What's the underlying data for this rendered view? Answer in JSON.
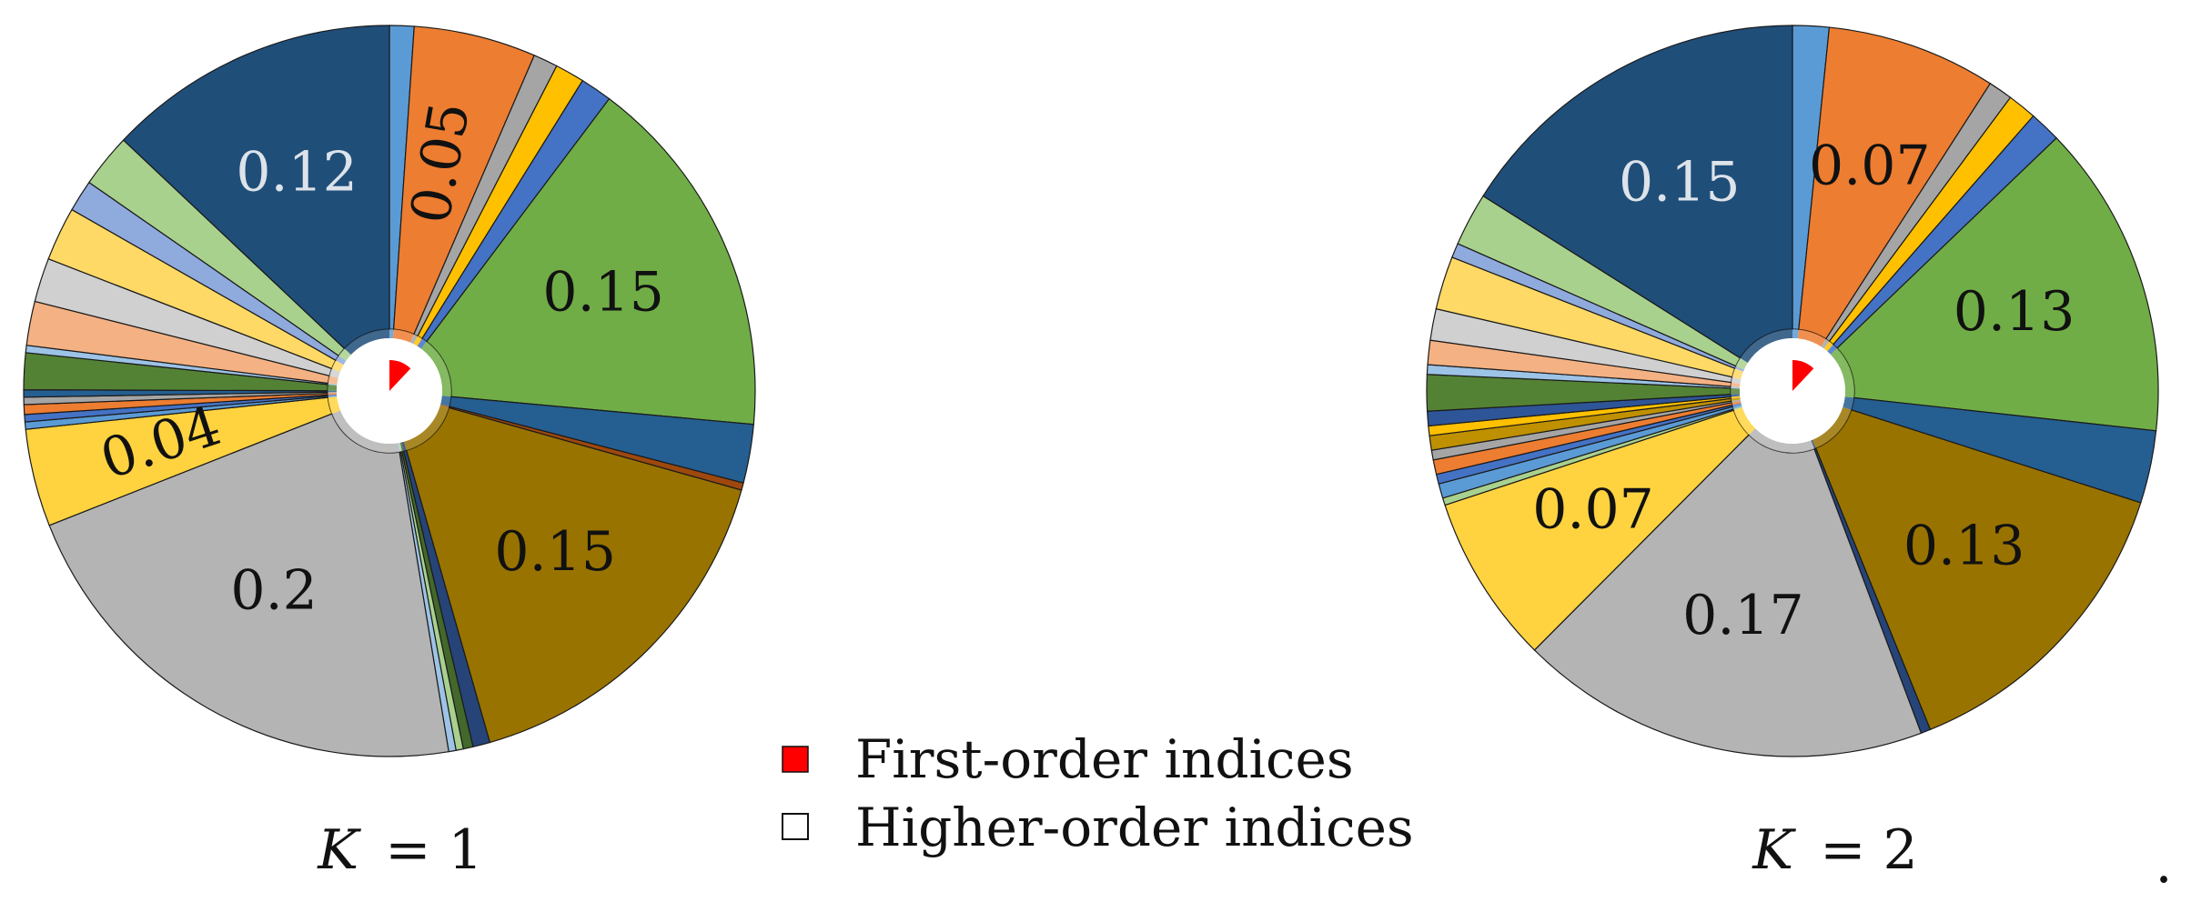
{
  "chart_data": [
    {
      "type": "pie",
      "caption_var": "K",
      "caption_value": "= 1",
      "first_order_share": 0.12,
      "slices": [
        {
          "value": 0.01,
          "color": "#5b9bd5"
        },
        {
          "value": 0.05,
          "color": "#ed7d31",
          "label": "0.05",
          "label_color": "#111111",
          "label_rotate": -80
        },
        {
          "value": 0.01,
          "color": "#a5a5a5"
        },
        {
          "value": 0.012,
          "color": "#ffc000"
        },
        {
          "value": 0.013,
          "color": "#4472c4"
        },
        {
          "value": 0.15,
          "color": "#70ad47",
          "label": "0.15",
          "label_color": "#111111"
        },
        {
          "value": 0.024,
          "color": "#255e91"
        },
        {
          "value": 0.003,
          "color": "#9e480e"
        },
        {
          "value": 0.15,
          "color": "#997300",
          "label": "0.15",
          "label_color": "#111111"
        },
        {
          "value": 0.007,
          "color": "#264478"
        },
        {
          "value": 0.004,
          "color": "#43682b"
        },
        {
          "value": 0.003,
          "color": "#a9d18e"
        },
        {
          "value": 0.003,
          "color": "#9dc3e6"
        },
        {
          "value": 0.2,
          "color": "#b4b4b4",
          "label": "0.2",
          "label_color": "#111111"
        },
        {
          "value": 0.04,
          "color": "#ffd33f",
          "label": "0.04",
          "label_color": "#111111",
          "label_rotate": -18
        },
        {
          "value": 0.003,
          "color": "#5b9bd5"
        },
        {
          "value": 0.003,
          "color": "#4472c4"
        },
        {
          "value": 0.004,
          "color": "#ed7d31"
        },
        {
          "value": 0.003,
          "color": "#a5a5a5"
        },
        {
          "value": 0.003,
          "color": "#255e91"
        },
        {
          "value": 0.015,
          "color": "#548235"
        },
        {
          "value": 0.003,
          "color": "#9dc3e6"
        },
        {
          "value": 0.018,
          "color": "#f4b183"
        },
        {
          "value": 0.018,
          "color": "#d0d0d0"
        },
        {
          "value": 0.022,
          "color": "#ffd966"
        },
        {
          "value": 0.013,
          "color": "#8faadc"
        },
        {
          "value": 0.022,
          "color": "#a9d18e"
        },
        {
          "value": 0.12,
          "color": "#1f4e79",
          "label": "0.12",
          "label_color": "#dde3ea"
        }
      ]
    },
    {
      "type": "pie",
      "caption_var": "K",
      "caption_value": "= 2",
      "first_order_share": 0.12,
      "slices": [
        {
          "value": 0.015,
          "color": "#5b9bd5"
        },
        {
          "value": 0.07,
          "color": "#ed7d31",
          "label": "0.07",
          "label_color": "#111111"
        },
        {
          "value": 0.01,
          "color": "#a5a5a5"
        },
        {
          "value": 0.012,
          "color": "#ffc000"
        },
        {
          "value": 0.013,
          "color": "#4472c4"
        },
        {
          "value": 0.13,
          "color": "#70ad47",
          "label": "0.13",
          "label_color": "#111111"
        },
        {
          "value": 0.03,
          "color": "#255e91"
        },
        {
          "value": 0.13,
          "color": "#997300",
          "label": "0.13",
          "label_color": "#111111"
        },
        {
          "value": 0.004,
          "color": "#264478"
        },
        {
          "value": 0.17,
          "color": "#b4b4b4",
          "label": "0.17",
          "label_color": "#111111"
        },
        {
          "value": 0.07,
          "color": "#ffd33f",
          "label": "0.07",
          "label_color": "#111111"
        },
        {
          "value": 0.003,
          "color": "#a9d18e"
        },
        {
          "value": 0.006,
          "color": "#5b9bd5"
        },
        {
          "value": 0.004,
          "color": "#4472c4"
        },
        {
          "value": 0.006,
          "color": "#ed7d31"
        },
        {
          "value": 0.004,
          "color": "#a5a5a5"
        },
        {
          "value": 0.006,
          "color": "#bf9000"
        },
        {
          "value": 0.004,
          "color": "#ffc000"
        },
        {
          "value": 0.006,
          "color": "#2e5597"
        },
        {
          "value": 0.015,
          "color": "#548235"
        },
        {
          "value": 0.004,
          "color": "#9dc3e6"
        },
        {
          "value": 0.01,
          "color": "#f4b183"
        },
        {
          "value": 0.013,
          "color": "#d0d0d0"
        },
        {
          "value": 0.022,
          "color": "#ffd966"
        },
        {
          "value": 0.006,
          "color": "#8faadc"
        },
        {
          "value": 0.022,
          "color": "#a9d18e"
        },
        {
          "value": 0.15,
          "color": "#1f4e79",
          "label": "0.15",
          "label_color": "#dde3ea"
        }
      ]
    }
  ],
  "legend": {
    "items": [
      {
        "label": "First-order indices",
        "color": "#ff0000"
      },
      {
        "label": "Higher-order indices",
        "color": "#ffffff"
      }
    ]
  },
  "trailing_mark": "."
}
